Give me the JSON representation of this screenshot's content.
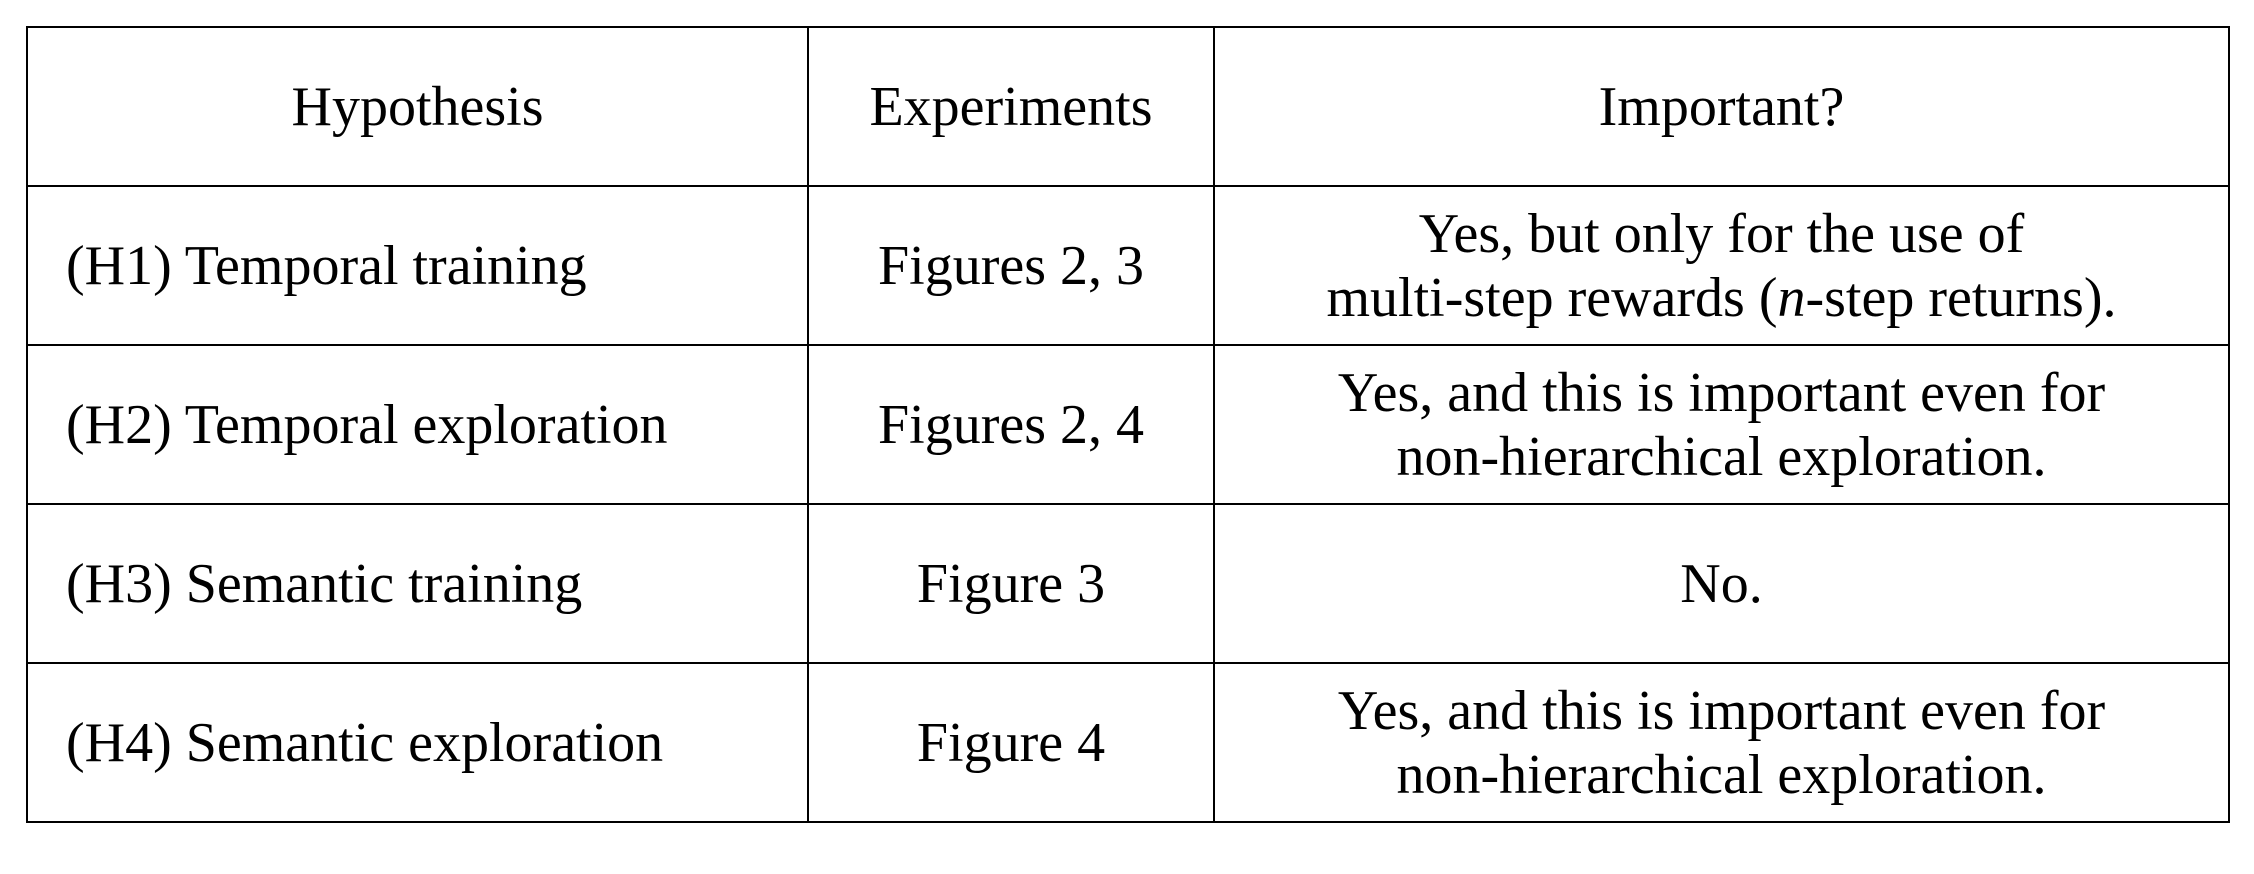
{
  "table": {
    "headers": {
      "hypothesis": "Hypothesis",
      "experiments": "Experiments",
      "important": "Important?"
    },
    "rows": [
      {
        "hypothesis": "(H1) Temporal training",
        "experiments": "Figures 2, 3",
        "important_line1": "Yes, but only for the use of",
        "important_line2_pre": "multi-step rewards (",
        "important_line2_var": "n",
        "important_line2_post": "-step returns)."
      },
      {
        "hypothesis": "(H2) Temporal exploration",
        "experiments": "Figures 2, 4",
        "important_line1": "Yes, and this is important even for",
        "important_line2": "non-hierarchical exploration."
      },
      {
        "hypothesis": "(H3) Semantic training",
        "experiments": "Figure 3",
        "important_line1": "No."
      },
      {
        "hypothesis": "(H4) Semantic exploration",
        "experiments": "Figure 4",
        "important_line1": "Yes, and this is important even for",
        "important_line2": "non-hierarchical exploration."
      }
    ]
  }
}
